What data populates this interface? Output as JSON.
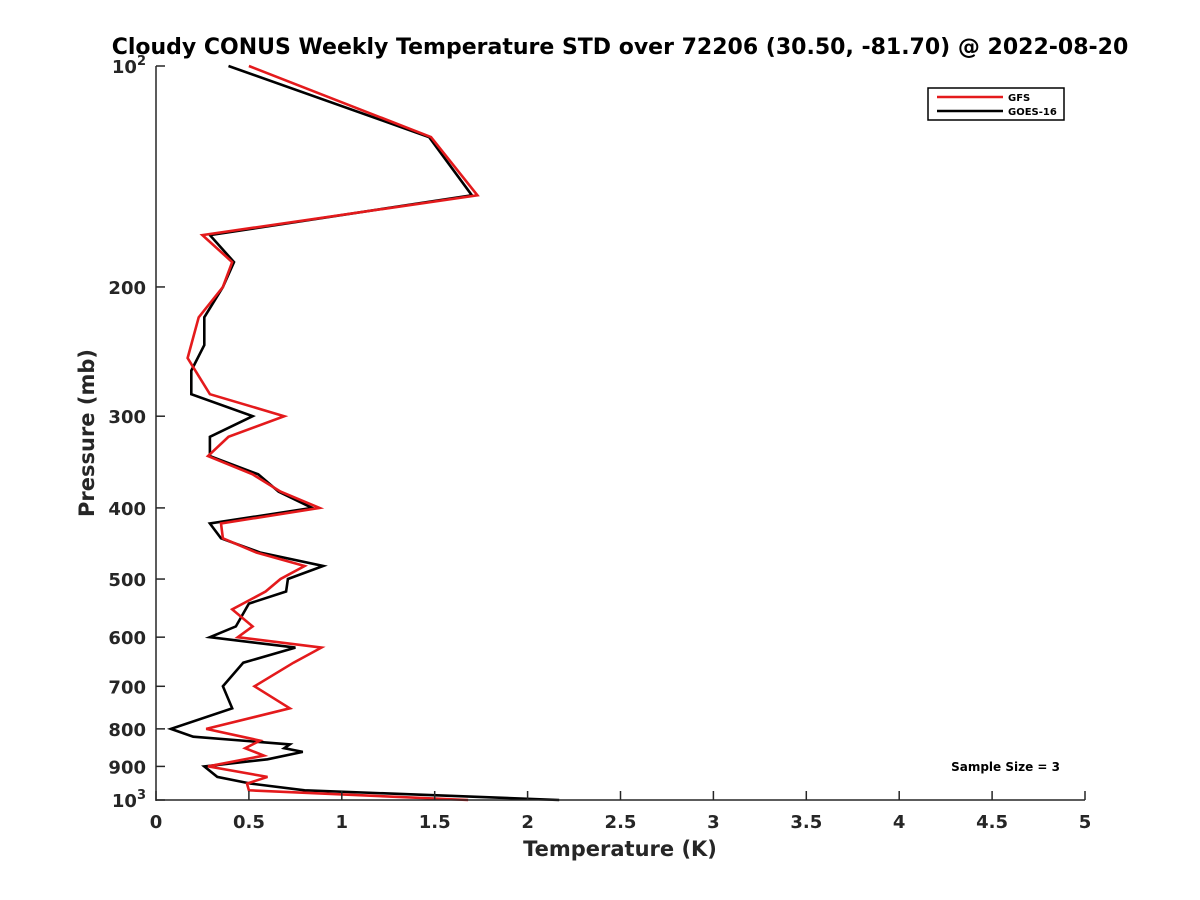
{
  "chart_data": {
    "type": "line",
    "title": "Cloudy CONUS Weekly Temperature STD over 72206 (30.50, -81.70) @ 2022-08-20",
    "xlabel": "Temperature (K)",
    "ylabel": "Pressure (mb)",
    "xlim": [
      0,
      5
    ],
    "ylim": [
      1000,
      100
    ],
    "y_scale": "log",
    "y_reversed": true,
    "grid": false,
    "legend_position": "top-right",
    "x_ticks": [
      {
        "value": 0,
        "label": "0"
      },
      {
        "value": 0.5,
        "label": "0.5"
      },
      {
        "value": 1,
        "label": "1"
      },
      {
        "value": 1.5,
        "label": "1.5"
      },
      {
        "value": 2,
        "label": "2"
      },
      {
        "value": 2.5,
        "label": "2.5"
      },
      {
        "value": 3,
        "label": "3"
      },
      {
        "value": 3.5,
        "label": "3.5"
      },
      {
        "value": 4,
        "label": "4"
      },
      {
        "value": 4.5,
        "label": "4.5"
      },
      {
        "value": 5,
        "label": "5"
      }
    ],
    "y_ticks": [
      {
        "value": 100,
        "label": "10",
        "exp": "2"
      },
      {
        "value": 200,
        "label": "200"
      },
      {
        "value": 300,
        "label": "300"
      },
      {
        "value": 400,
        "label": "400"
      },
      {
        "value": 500,
        "label": "500"
      },
      {
        "value": 600,
        "label": "600"
      },
      {
        "value": 700,
        "label": "700"
      },
      {
        "value": 800,
        "label": "800"
      },
      {
        "value": 900,
        "label": "900"
      },
      {
        "value": 1000,
        "label": "10",
        "exp": "3"
      }
    ],
    "series": [
      {
        "name": "GFS",
        "color": "#e41a1c",
        "points": [
          [
            0.5,
            100
          ],
          [
            1.48,
            125
          ],
          [
            1.73,
            150
          ],
          [
            0.25,
            170
          ],
          [
            0.41,
            185
          ],
          [
            0.36,
            200
          ],
          [
            0.23,
            220
          ],
          [
            0.17,
            250
          ],
          [
            0.29,
            280
          ],
          [
            0.69,
            300
          ],
          [
            0.39,
            320
          ],
          [
            0.28,
            340
          ],
          [
            0.52,
            360
          ],
          [
            0.67,
            380
          ],
          [
            0.88,
            400
          ],
          [
            0.35,
            420
          ],
          [
            0.36,
            440
          ],
          [
            0.54,
            460
          ],
          [
            0.8,
            480
          ],
          [
            0.67,
            500
          ],
          [
            0.59,
            520
          ],
          [
            0.41,
            550
          ],
          [
            0.52,
            580
          ],
          [
            0.44,
            600
          ],
          [
            0.89,
            620
          ],
          [
            0.74,
            650
          ],
          [
            0.53,
            700
          ],
          [
            0.72,
            750
          ],
          [
            0.27,
            800
          ],
          [
            0.56,
            830
          ],
          [
            0.48,
            850
          ],
          [
            0.58,
            870
          ],
          [
            0.28,
            900
          ],
          [
            0.6,
            930
          ],
          [
            0.49,
            950
          ],
          [
            0.5,
            970
          ],
          [
            1.68,
            1000
          ]
        ]
      },
      {
        "name": "GOES-16",
        "color": "#000000",
        "points": [
          [
            0.39,
            100
          ],
          [
            1.47,
            125
          ],
          [
            1.7,
            150
          ],
          [
            0.29,
            170
          ],
          [
            0.42,
            185
          ],
          [
            0.36,
            200
          ],
          [
            0.26,
            220
          ],
          [
            0.26,
            240
          ],
          [
            0.19,
            260
          ],
          [
            0.19,
            280
          ],
          [
            0.52,
            300
          ],
          [
            0.29,
            320
          ],
          [
            0.29,
            340
          ],
          [
            0.55,
            360
          ],
          [
            0.66,
            380
          ],
          [
            0.84,
            400
          ],
          [
            0.29,
            420
          ],
          [
            0.35,
            440
          ],
          [
            0.56,
            460
          ],
          [
            0.9,
            480
          ],
          [
            0.71,
            500
          ],
          [
            0.7,
            520
          ],
          [
            0.5,
            540
          ],
          [
            0.43,
            580
          ],
          [
            0.29,
            600
          ],
          [
            0.75,
            620
          ],
          [
            0.47,
            650
          ],
          [
            0.36,
            700
          ],
          [
            0.41,
            750
          ],
          [
            0.08,
            800
          ],
          [
            0.2,
            820
          ],
          [
            0.72,
            840
          ],
          [
            0.69,
            850
          ],
          [
            0.79,
            860
          ],
          [
            0.6,
            880
          ],
          [
            0.26,
            900
          ],
          [
            0.33,
            930
          ],
          [
            0.51,
            950
          ],
          [
            0.8,
            970
          ],
          [
            2.17,
            1000
          ]
        ]
      }
    ],
    "annotations": [
      {
        "text": "Sample Size = 3"
      }
    ]
  }
}
